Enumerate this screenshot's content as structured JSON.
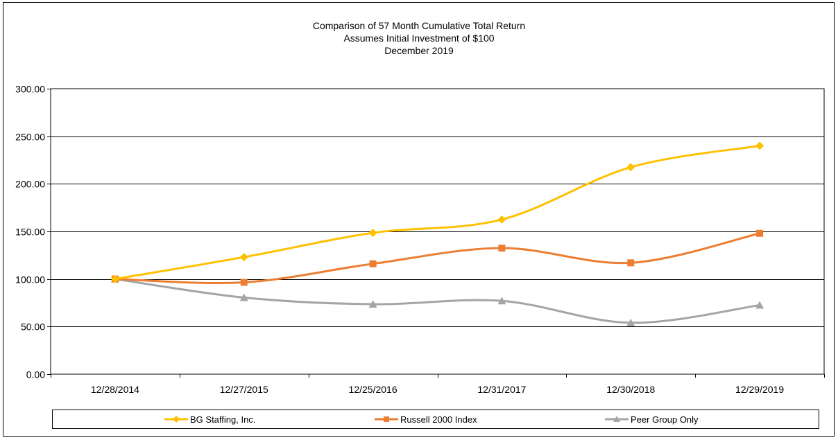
{
  "chart_data": {
    "type": "line",
    "title": "Comparison  of 57 Month  Cumulative  Total  Return",
    "subtitle": "Assumes Initial Investment  of $100",
    "subtitle2": "December  2019",
    "categories": [
      "12/28/2014",
      "12/27/2015",
      "12/25/2016",
      "12/31/2017",
      "12/30/2018",
      "12/29/2019"
    ],
    "series": [
      {
        "name": "BG Staffing, Inc.",
        "values": [
          100.0,
          123.0,
          148.5,
          162.5,
          217.5,
          240.0
        ],
        "color": "#FFC000",
        "marker": "diamond"
      },
      {
        "name": "Russell 2000 Index",
        "values": [
          100.0,
          96.5,
          116.0,
          132.5,
          117.0,
          148.0
        ],
        "color": "#ED7D31",
        "marker": "square"
      },
      {
        "name": "Peer Group Only",
        "values": [
          100.0,
          80.5,
          73.5,
          77.0,
          54.0,
          72.5
        ],
        "color": "#A5A5A5",
        "marker": "triangle"
      }
    ],
    "yticks": [
      "0.00",
      "50.00",
      "100.00",
      "150.00",
      "200.00",
      "250.00",
      "300.00"
    ],
    "ylim": [
      0,
      300
    ],
    "xlabel": "",
    "ylabel": "",
    "grid": true,
    "legend": "bottom"
  }
}
